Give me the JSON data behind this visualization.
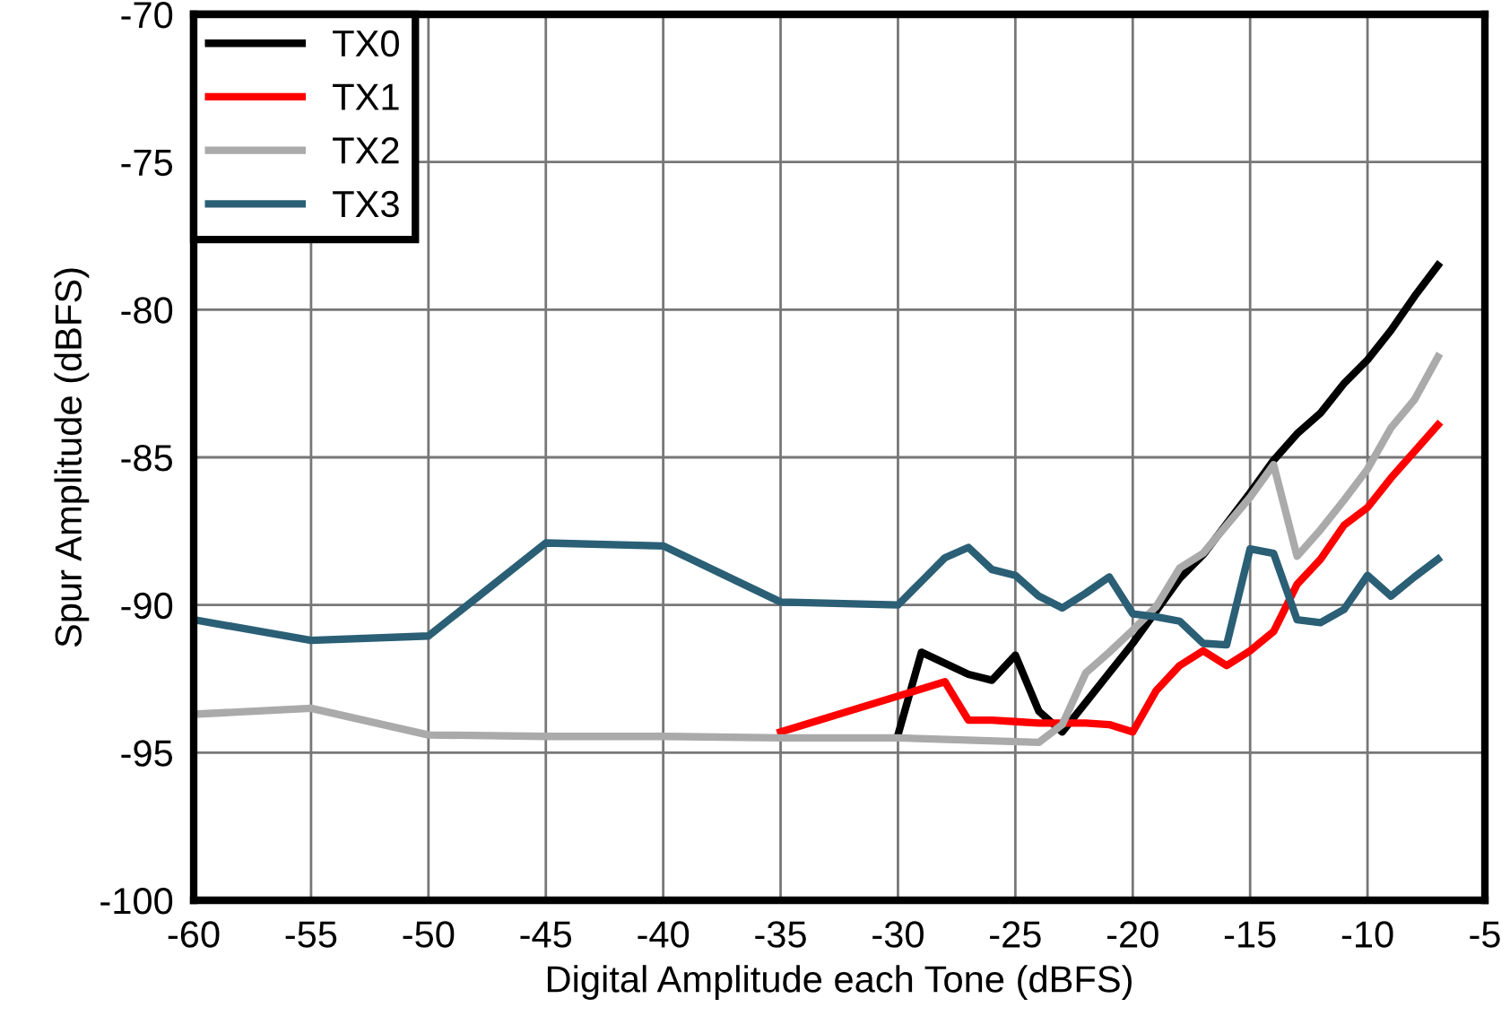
{
  "chart_data": {
    "type": "line",
    "xlabel": "Digital Amplitude each Tone (dBFS)",
    "ylabel": "Spur Amplitude (dBFS)",
    "xlim": [
      -60,
      -5
    ],
    "ylim": [
      -100,
      -70
    ],
    "xticks": [
      -60,
      -55,
      -50,
      -45,
      -40,
      -35,
      -30,
      -25,
      -20,
      -15,
      -10,
      -5
    ],
    "yticks": [
      -100,
      -95,
      -90,
      -85,
      -80,
      -75,
      -70
    ],
    "grid": true,
    "legend": "top left",
    "marker": "none",
    "line_style": "solid",
    "series": [
      {
        "name": "TX0",
        "color": "#000000",
        "x": [
          -30,
          -29,
          -27,
          -26,
          -25,
          -24,
          -23,
          -22,
          -21,
          -20,
          -19,
          -18,
          -17,
          -16,
          -15,
          -14,
          -13,
          -12,
          -11,
          -10,
          -9,
          -8,
          -7
        ],
        "values": [
          -94.4,
          -91.6,
          -92.35,
          -92.55,
          -91.7,
          -93.6,
          -94.3,
          -93.3,
          -92.3,
          -91.3,
          -90.2,
          -89.1,
          -88.3,
          -87.25,
          -86.2,
          -85.1,
          -84.2,
          -83.5,
          -82.5,
          -81.7,
          -80.7,
          -79.55,
          -78.5
        ]
      },
      {
        "name": "TX1",
        "color": "#ff0000",
        "x": [
          -35,
          -28,
          -27,
          -26,
          -25,
          -24,
          -23,
          -22,
          -21,
          -20,
          -19,
          -18,
          -17,
          -16,
          -15,
          -14,
          -13,
          -12,
          -11,
          -10,
          -9,
          -8,
          -7
        ],
        "values": [
          -94.3,
          -92.6,
          -93.9,
          -93.9,
          -93.95,
          -94.0,
          -94.0,
          -94.0,
          -94.05,
          -94.3,
          -92.9,
          -92.05,
          -91.55,
          -92.05,
          -91.55,
          -90.9,
          -89.3,
          -88.45,
          -87.3,
          -86.7,
          -85.7,
          -84.8,
          -83.9
        ]
      },
      {
        "name": "TX2",
        "color": "#aaaaaa",
        "x": [
          -60,
          -55,
          -50,
          -45,
          -40,
          -35,
          -30,
          -24,
          -23,
          -22,
          -21,
          -20,
          -19,
          -18,
          -17,
          -16,
          -15,
          -14,
          -13,
          -12,
          -11,
          -10,
          -9,
          -8,
          -7
        ],
        "values": [
          -93.7,
          -93.5,
          -94.4,
          -94.45,
          -94.45,
          -94.5,
          -94.5,
          -94.65,
          -94.05,
          -92.3,
          -91.6,
          -90.85,
          -90.05,
          -88.75,
          -88.25,
          -87.3,
          -86.35,
          -85.25,
          -88.35,
          -87.45,
          -86.45,
          -85.4,
          -84.0,
          -83.05,
          -81.6
        ]
      },
      {
        "name": "TX3",
        "color": "#2a5f75",
        "x": [
          -60,
          -55,
          -50,
          -45,
          -40,
          -35,
          -30,
          -29,
          -28,
          -27,
          -26,
          -25,
          -24,
          -23,
          -22,
          -21,
          -20,
          -19,
          -18,
          -17,
          -16,
          -15,
          -14,
          -13,
          -12,
          -11,
          -10,
          -9,
          -8,
          -7
        ],
        "values": [
          -90.5,
          -91.2,
          -91.05,
          -87.9,
          -88.0,
          -89.9,
          -90.0,
          -89.2,
          -88.4,
          -88.05,
          -88.8,
          -89.0,
          -89.7,
          -90.1,
          -89.6,
          -89.05,
          -90.3,
          -90.4,
          -90.55,
          -91.3,
          -91.35,
          -88.1,
          -88.25,
          -90.5,
          -90.6,
          -90.15,
          -89.0,
          -89.7,
          -89.05,
          -88.45
        ]
      }
    ]
  }
}
